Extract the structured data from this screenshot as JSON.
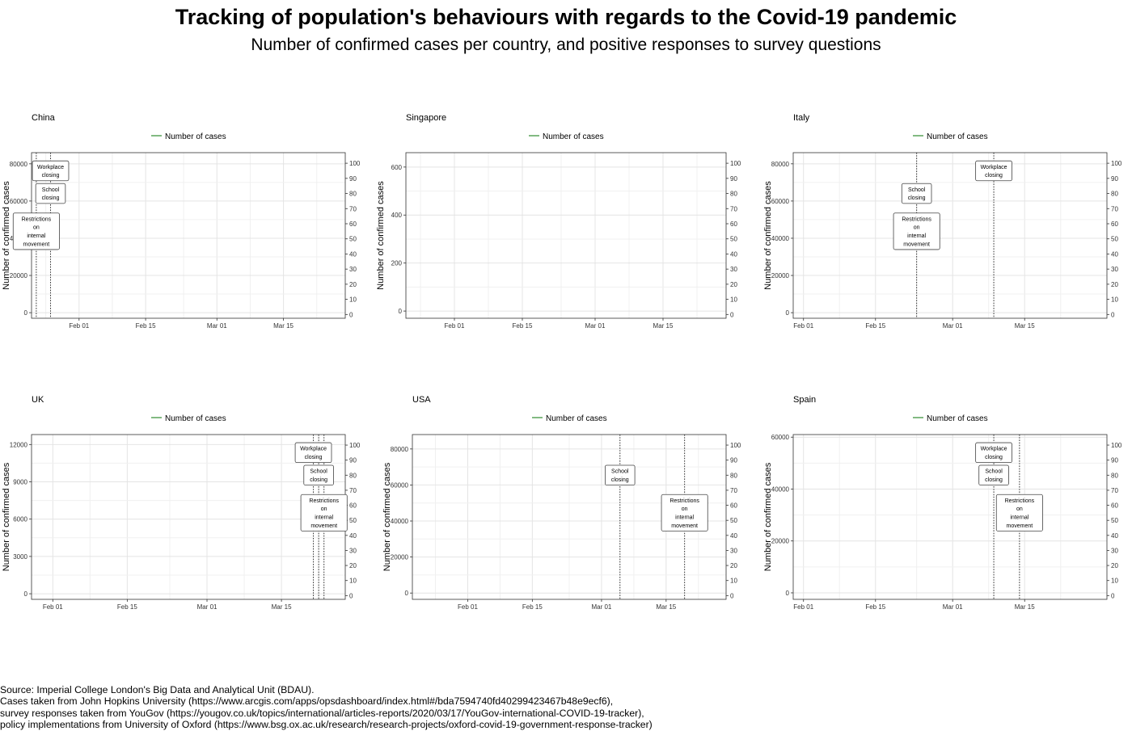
{
  "title": "Tracking of population's behaviours with regards to the Covid-19 pandemic",
  "subtitle": "Number of confirmed cases per country, and positive responses to survey questions",
  "footer": [
    "Source: Imperial College London's Big Data and Analytical Unit (BDAU).",
    "Cases taken from John Hopkins University (https://www.arcgis.com/apps/opsdashboard/index.html#/bda7594740fd40299423467b48e9ecf6),",
    "survey responses taken from YouGov (https://yougov.co.uk/topics/international/articles-reports/2020/03/17/YouGov-international-COVID-19-tracker),",
    "policy implementations from University of Oxford (https://www.bsg.ox.ac.uk/research/research-projects/oxford-covid-19-government-response-tracker)"
  ],
  "colors": {
    "series_line": "#2e8b2e",
    "grid": "#e4e4e4",
    "panel_border": "#333333",
    "policy_line": "#333333"
  },
  "chart_data": [
    {
      "type": "line",
      "panel": "China",
      "xlim": [
        "2020-01-22",
        "2020-03-28"
      ],
      "x_ticks": [
        "2020-02-01",
        "2020-02-15",
        "2020-03-01",
        "2020-03-15"
      ],
      "x_tick_labels": [
        "Feb 01",
        "Feb 15",
        "Mar 01",
        "Mar 15"
      ],
      "ylim": [
        -3000,
        86000
      ],
      "y_ticks": [
        0,
        20000,
        40000,
        60000,
        80000
      ],
      "ylabel": "Number of confirmed cases",
      "y2lim": [
        -2.5,
        107
      ],
      "y2_ticks": [
        0,
        10,
        20,
        30,
        40,
        50,
        60,
        70,
        80,
        90,
        100
      ],
      "legend": "top",
      "grid": true,
      "series": [
        {
          "name": "Number of cases",
          "x": [],
          "y": []
        }
      ],
      "policies": [
        {
          "date": "2020-01-23",
          "label": [
            "Restrictions",
            "on",
            "internal",
            "movement"
          ],
          "y": 55
        },
        {
          "date": "2020-01-26",
          "label": [
            "School",
            "closing"
          ],
          "y": 80
        },
        {
          "date": "2020-01-26",
          "label": [
            "Workplace",
            "closing"
          ],
          "y": 95
        }
      ]
    },
    {
      "type": "line",
      "panel": "Singapore",
      "xlim": [
        "2020-01-22",
        "2020-03-28"
      ],
      "x_ticks": [
        "2020-02-01",
        "2020-02-15",
        "2020-03-01",
        "2020-03-15"
      ],
      "x_tick_labels": [
        "Feb 01",
        "Feb 15",
        "Mar 01",
        "Mar 15"
      ],
      "ylim": [
        -30,
        660
      ],
      "y_ticks": [
        0,
        200,
        400,
        600
      ],
      "ylabel": "Number of confirmed cases",
      "y2lim": [
        -2.5,
        107
      ],
      "y2_ticks": [
        0,
        10,
        20,
        30,
        40,
        50,
        60,
        70,
        80,
        90,
        100
      ],
      "legend": "top",
      "grid": true,
      "series": [
        {
          "name": "Number of cases",
          "x": [],
          "y": []
        }
      ],
      "policies": []
    },
    {
      "type": "line",
      "panel": "Italy",
      "xlim": [
        "2020-01-30",
        "2020-03-31"
      ],
      "x_ticks": [
        "2020-02-01",
        "2020-02-15",
        "2020-03-01",
        "2020-03-15"
      ],
      "x_tick_labels": [
        "Feb 01",
        "Feb 15",
        "Mar 01",
        "Mar 15"
      ],
      "ylim": [
        -3000,
        86000
      ],
      "y_ticks": [
        0,
        20000,
        40000,
        60000,
        80000
      ],
      "ylabel": "Number of confirmed cases",
      "y2lim": [
        -2.5,
        107
      ],
      "y2_ticks": [
        0,
        10,
        20,
        30,
        40,
        50,
        60,
        70,
        80,
        90,
        100
      ],
      "legend": "top",
      "grid": true,
      "series": [
        {
          "name": "Number of cases",
          "x": [],
          "y": []
        }
      ],
      "policies": [
        {
          "date": "2020-02-23",
          "label": [
            "Restrictions",
            "on",
            "internal",
            "movement"
          ],
          "y": 55
        },
        {
          "date": "2020-02-23",
          "label": [
            "School",
            "closing"
          ],
          "y": 80
        },
        {
          "date": "2020-03-09",
          "label": [
            "Workplace",
            "closing"
          ],
          "y": 95
        }
      ]
    },
    {
      "type": "line",
      "panel": "UK",
      "xlim": [
        "2020-01-28",
        "2020-03-27"
      ],
      "x_ticks": [
        "2020-02-01",
        "2020-02-15",
        "2020-03-01",
        "2020-03-15"
      ],
      "x_tick_labels": [
        "Feb 01",
        "Feb 15",
        "Mar 01",
        "Mar 15"
      ],
      "ylim": [
        -450,
        12800
      ],
      "y_ticks": [
        0,
        3000,
        6000,
        9000,
        12000
      ],
      "ylabel": "Number of confirmed cases",
      "y2lim": [
        -2.5,
        107
      ],
      "y2_ticks": [
        0,
        10,
        20,
        30,
        40,
        50,
        60,
        70,
        80,
        90,
        100
      ],
      "legend": "top",
      "grid": true,
      "series": [
        {
          "name": "Number of cases",
          "x": [],
          "y": []
        }
      ],
      "policies": [
        {
          "date": "2020-03-23",
          "label": [
            "Restrictions",
            "on",
            "internal",
            "movement"
          ],
          "y": 55
        },
        {
          "date": "2020-03-22",
          "label": [
            "School",
            "closing"
          ],
          "y": 80
        },
        {
          "date": "2020-03-21",
          "label": [
            "Workplace",
            "closing"
          ],
          "y": 95
        }
      ]
    },
    {
      "type": "line",
      "panel": "USA",
      "xlim": [
        "2020-01-20",
        "2020-03-28"
      ],
      "x_ticks": [
        "2020-02-01",
        "2020-02-15",
        "2020-03-01",
        "2020-03-15"
      ],
      "x_tick_labels": [
        "Feb 01",
        "Feb 15",
        "Mar 01",
        "Mar 15"
      ],
      "ylim": [
        -3500,
        88000
      ],
      "y_ticks": [
        0,
        20000,
        40000,
        60000,
        80000
      ],
      "ylabel": "Number of confirmed cases",
      "y2lim": [
        -2.5,
        107
      ],
      "y2_ticks": [
        0,
        10,
        20,
        30,
        40,
        50,
        60,
        70,
        80,
        90,
        100
      ],
      "legend": "top",
      "grid": true,
      "series": [
        {
          "name": "Number of cases",
          "x": [],
          "y": []
        }
      ],
      "policies": [
        {
          "date": "2020-03-05",
          "label": [
            "School",
            "closing"
          ],
          "y": 80
        },
        {
          "date": "2020-03-19",
          "label": [
            "Restrictions",
            "on",
            "internal",
            "movement"
          ],
          "y": 55
        }
      ]
    },
    {
      "type": "line",
      "panel": "Spain",
      "xlim": [
        "2020-01-30",
        "2020-03-31"
      ],
      "x_ticks": [
        "2020-02-01",
        "2020-02-15",
        "2020-03-01",
        "2020-03-15"
      ],
      "x_tick_labels": [
        "Feb 01",
        "Feb 15",
        "Mar 01",
        "Mar 15"
      ],
      "ylim": [
        -2500,
        61000
      ],
      "y_ticks": [
        0,
        20000,
        40000,
        60000
      ],
      "ylabel": "Number of confirmed cases",
      "y2lim": [
        -2.5,
        107
      ],
      "y2_ticks": [
        0,
        10,
        20,
        30,
        40,
        50,
        60,
        70,
        80,
        90,
        100
      ],
      "legend": "top",
      "grid": true,
      "series": [
        {
          "name": "Number of cases",
          "x": [],
          "y": []
        }
      ],
      "policies": [
        {
          "date": "2020-03-09",
          "label": [
            "School",
            "closing"
          ],
          "y": 80
        },
        {
          "date": "2020-03-09",
          "label": [
            "Workplace",
            "closing"
          ],
          "y": 95
        },
        {
          "date": "2020-03-14",
          "label": [
            "Restrictions",
            "on",
            "internal",
            "movement"
          ],
          "y": 55
        }
      ]
    }
  ]
}
